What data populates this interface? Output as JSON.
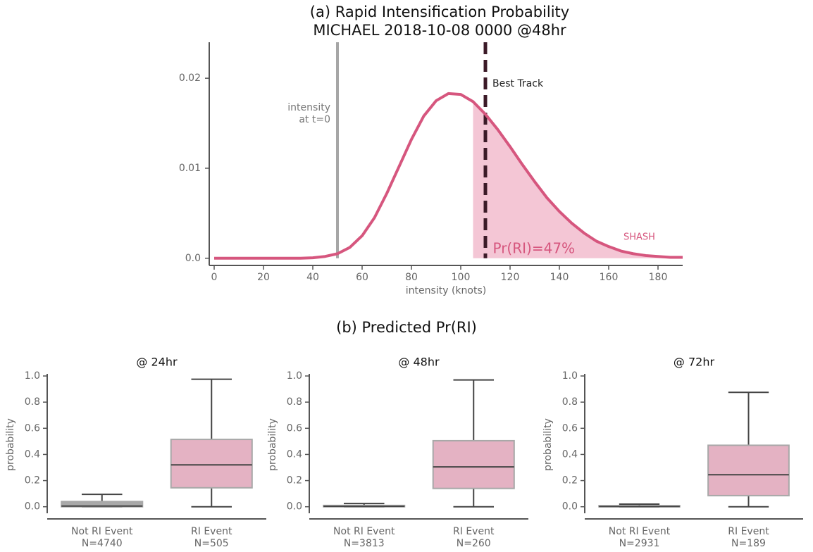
{
  "panel_b_title": "(b) Predicted Pr(RI)",
  "chart_data": [
    {
      "type": "line",
      "title": "(a) Rapid Intensification Probability",
      "subtitle": "MICHAEL 2018-10-08 0000 @48hr",
      "xlabel": "intensity (knots)",
      "color": "#d6567e",
      "x": [
        0,
        5,
        10,
        15,
        20,
        25,
        30,
        35,
        40,
        45,
        50,
        55,
        60,
        65,
        70,
        75,
        80,
        85,
        90,
        95,
        100,
        105,
        110,
        115,
        120,
        125,
        130,
        135,
        140,
        145,
        150,
        155,
        160,
        165,
        170,
        175,
        180,
        185,
        190
      ],
      "values": [
        0,
        0,
        0,
        0,
        0,
        0,
        0,
        0,
        5e-05,
        0.0002,
        0.0005,
        0.0012,
        0.0025,
        0.0045,
        0.0072,
        0.0102,
        0.0132,
        0.0158,
        0.0175,
        0.0183,
        0.0182,
        0.0174,
        0.016,
        0.0143,
        0.0124,
        0.0104,
        0.0085,
        0.0067,
        0.0052,
        0.0039,
        0.0028,
        0.0019,
        0.0013,
        0.0008,
        0.0005,
        0.0003,
        0.0002,
        0.0001,
        0.0001
      ],
      "xlim": [
        -2,
        190
      ],
      "xticks": [
        0,
        20,
        40,
        60,
        80,
        100,
        120,
        140,
        160,
        180
      ],
      "ylim": [
        -0.0008,
        0.024
      ],
      "yticks": [
        {
          "value": 0,
          "label": "0.0"
        },
        0.01,
        0.02
      ],
      "series_label": "SHASH",
      "shade": {
        "from": 105,
        "color": "#f4c6d5",
        "label": "Pr(RI)=47%"
      },
      "vlines": [
        {
          "x": 50,
          "color": "#a6a6a6",
          "label": [
            "intensity",
            "at t=0"
          ]
        },
        {
          "x": 110,
          "color": "#3b1a27",
          "label": [
            "Best Track"
          ]
        }
      ]
    },
    {
      "type": "box",
      "title": "@ 24hr",
      "ylabel": "probability",
      "categories": [
        "Not RI Event",
        "RI Event"
      ],
      "counts": [
        "N=4740",
        "N=505"
      ],
      "ylim": [
        -0.05,
        1.0
      ],
      "yticks": [
        {
          "value": 0,
          "label": "0.0"
        },
        0.2,
        0.4,
        0.6,
        0.8,
        {
          "value": 1,
          "label": "1.0"
        }
      ],
      "boxes": [
        {
          "min": 0,
          "q1": 0,
          "median": 0.005,
          "q3": 0.04,
          "max": 0.095,
          "color": "#a9a9a9"
        },
        {
          "min": 0,
          "q1": 0.145,
          "median": 0.32,
          "q3": 0.515,
          "max": 0.975,
          "color": "#e4b2c3"
        }
      ]
    },
    {
      "type": "box",
      "title": "@ 48hr",
      "ylabel": "probability",
      "categories": [
        "Not RI Event",
        "RI Event"
      ],
      "counts": [
        "N=3813",
        "N=260"
      ],
      "ylim": [
        -0.05,
        1.0
      ],
      "yticks": [
        {
          "value": 0,
          "label": "0.0"
        },
        0.2,
        0.4,
        0.6,
        0.8,
        {
          "value": 1,
          "label": "1.0"
        }
      ],
      "boxes": [
        {
          "min": 0,
          "q1": 0,
          "median": 0.003,
          "q3": 0.01,
          "max": 0.025,
          "color": "#a9a9a9"
        },
        {
          "min": 0,
          "q1": 0.14,
          "median": 0.305,
          "q3": 0.505,
          "max": 0.97,
          "color": "#e4b2c3"
        }
      ]
    },
    {
      "type": "box",
      "title": "@ 72hr",
      "ylabel": "probability",
      "categories": [
        "Not RI Event",
        "RI Event"
      ],
      "counts": [
        "N=2931",
        "N=189"
      ],
      "ylim": [
        -0.05,
        1.0
      ],
      "yticks": [
        {
          "value": 0,
          "label": "0.0"
        },
        0.2,
        0.4,
        0.6,
        0.8,
        {
          "value": 1,
          "label": "1.0"
        }
      ],
      "boxes": [
        {
          "min": 0,
          "q1": 0,
          "median": 0.002,
          "q3": 0.008,
          "max": 0.02,
          "color": "#a9a9a9"
        },
        {
          "min": 0,
          "q1": 0.085,
          "median": 0.245,
          "q3": 0.47,
          "max": 0.875,
          "color": "#e4b2c3"
        }
      ]
    }
  ]
}
